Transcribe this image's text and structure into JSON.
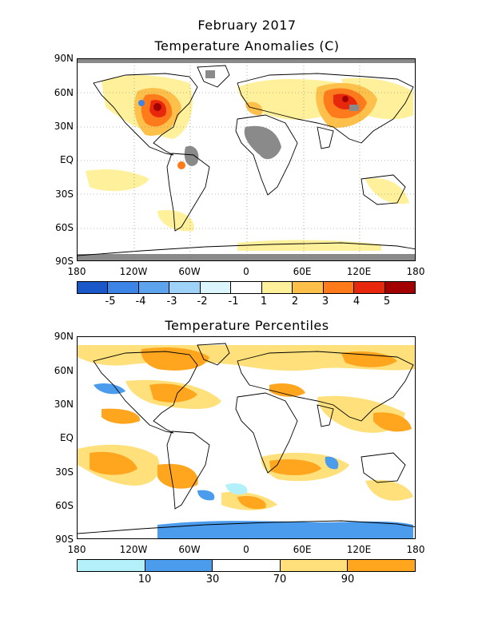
{
  "figure_title": "February 2017",
  "top_panel": {
    "title": "Temperature Anomalies (C)",
    "y_labels": [
      "90N",
      "60N",
      "30N",
      "EQ",
      "30S",
      "60S",
      "90S"
    ],
    "x_labels": [
      "180",
      "120W",
      "60W",
      "0",
      "60E",
      "120E",
      "180"
    ],
    "colorbar": {
      "colors": [
        "#1a57c8",
        "#3c85e6",
        "#5ea3ee",
        "#9fd2f8",
        "#dcf6fe",
        "#ffffff",
        "#fff09b",
        "#fdc04a",
        "#ff7a1a",
        "#e8280c",
        "#a30000"
      ],
      "labels": [
        "-5",
        "-4",
        "-3",
        "-2",
        "-1",
        "1",
        "2",
        "3",
        "4",
        "5"
      ]
    }
  },
  "bottom_panel": {
    "title": "Temperature Percentiles",
    "y_labels": [
      "90N",
      "60N",
      "30N",
      "EQ",
      "30S",
      "60S",
      "90S"
    ],
    "x_labels": [
      "180",
      "120W",
      "60W",
      "0",
      "60E",
      "120E",
      "180"
    ],
    "colorbar": {
      "colors": [
        "#b4f0fa",
        "#4c9cee",
        "#ffffff",
        "#ffe07a",
        "#ffa51e"
      ],
      "labels": [
        "10",
        "30",
        "70",
        "90"
      ]
    }
  }
}
